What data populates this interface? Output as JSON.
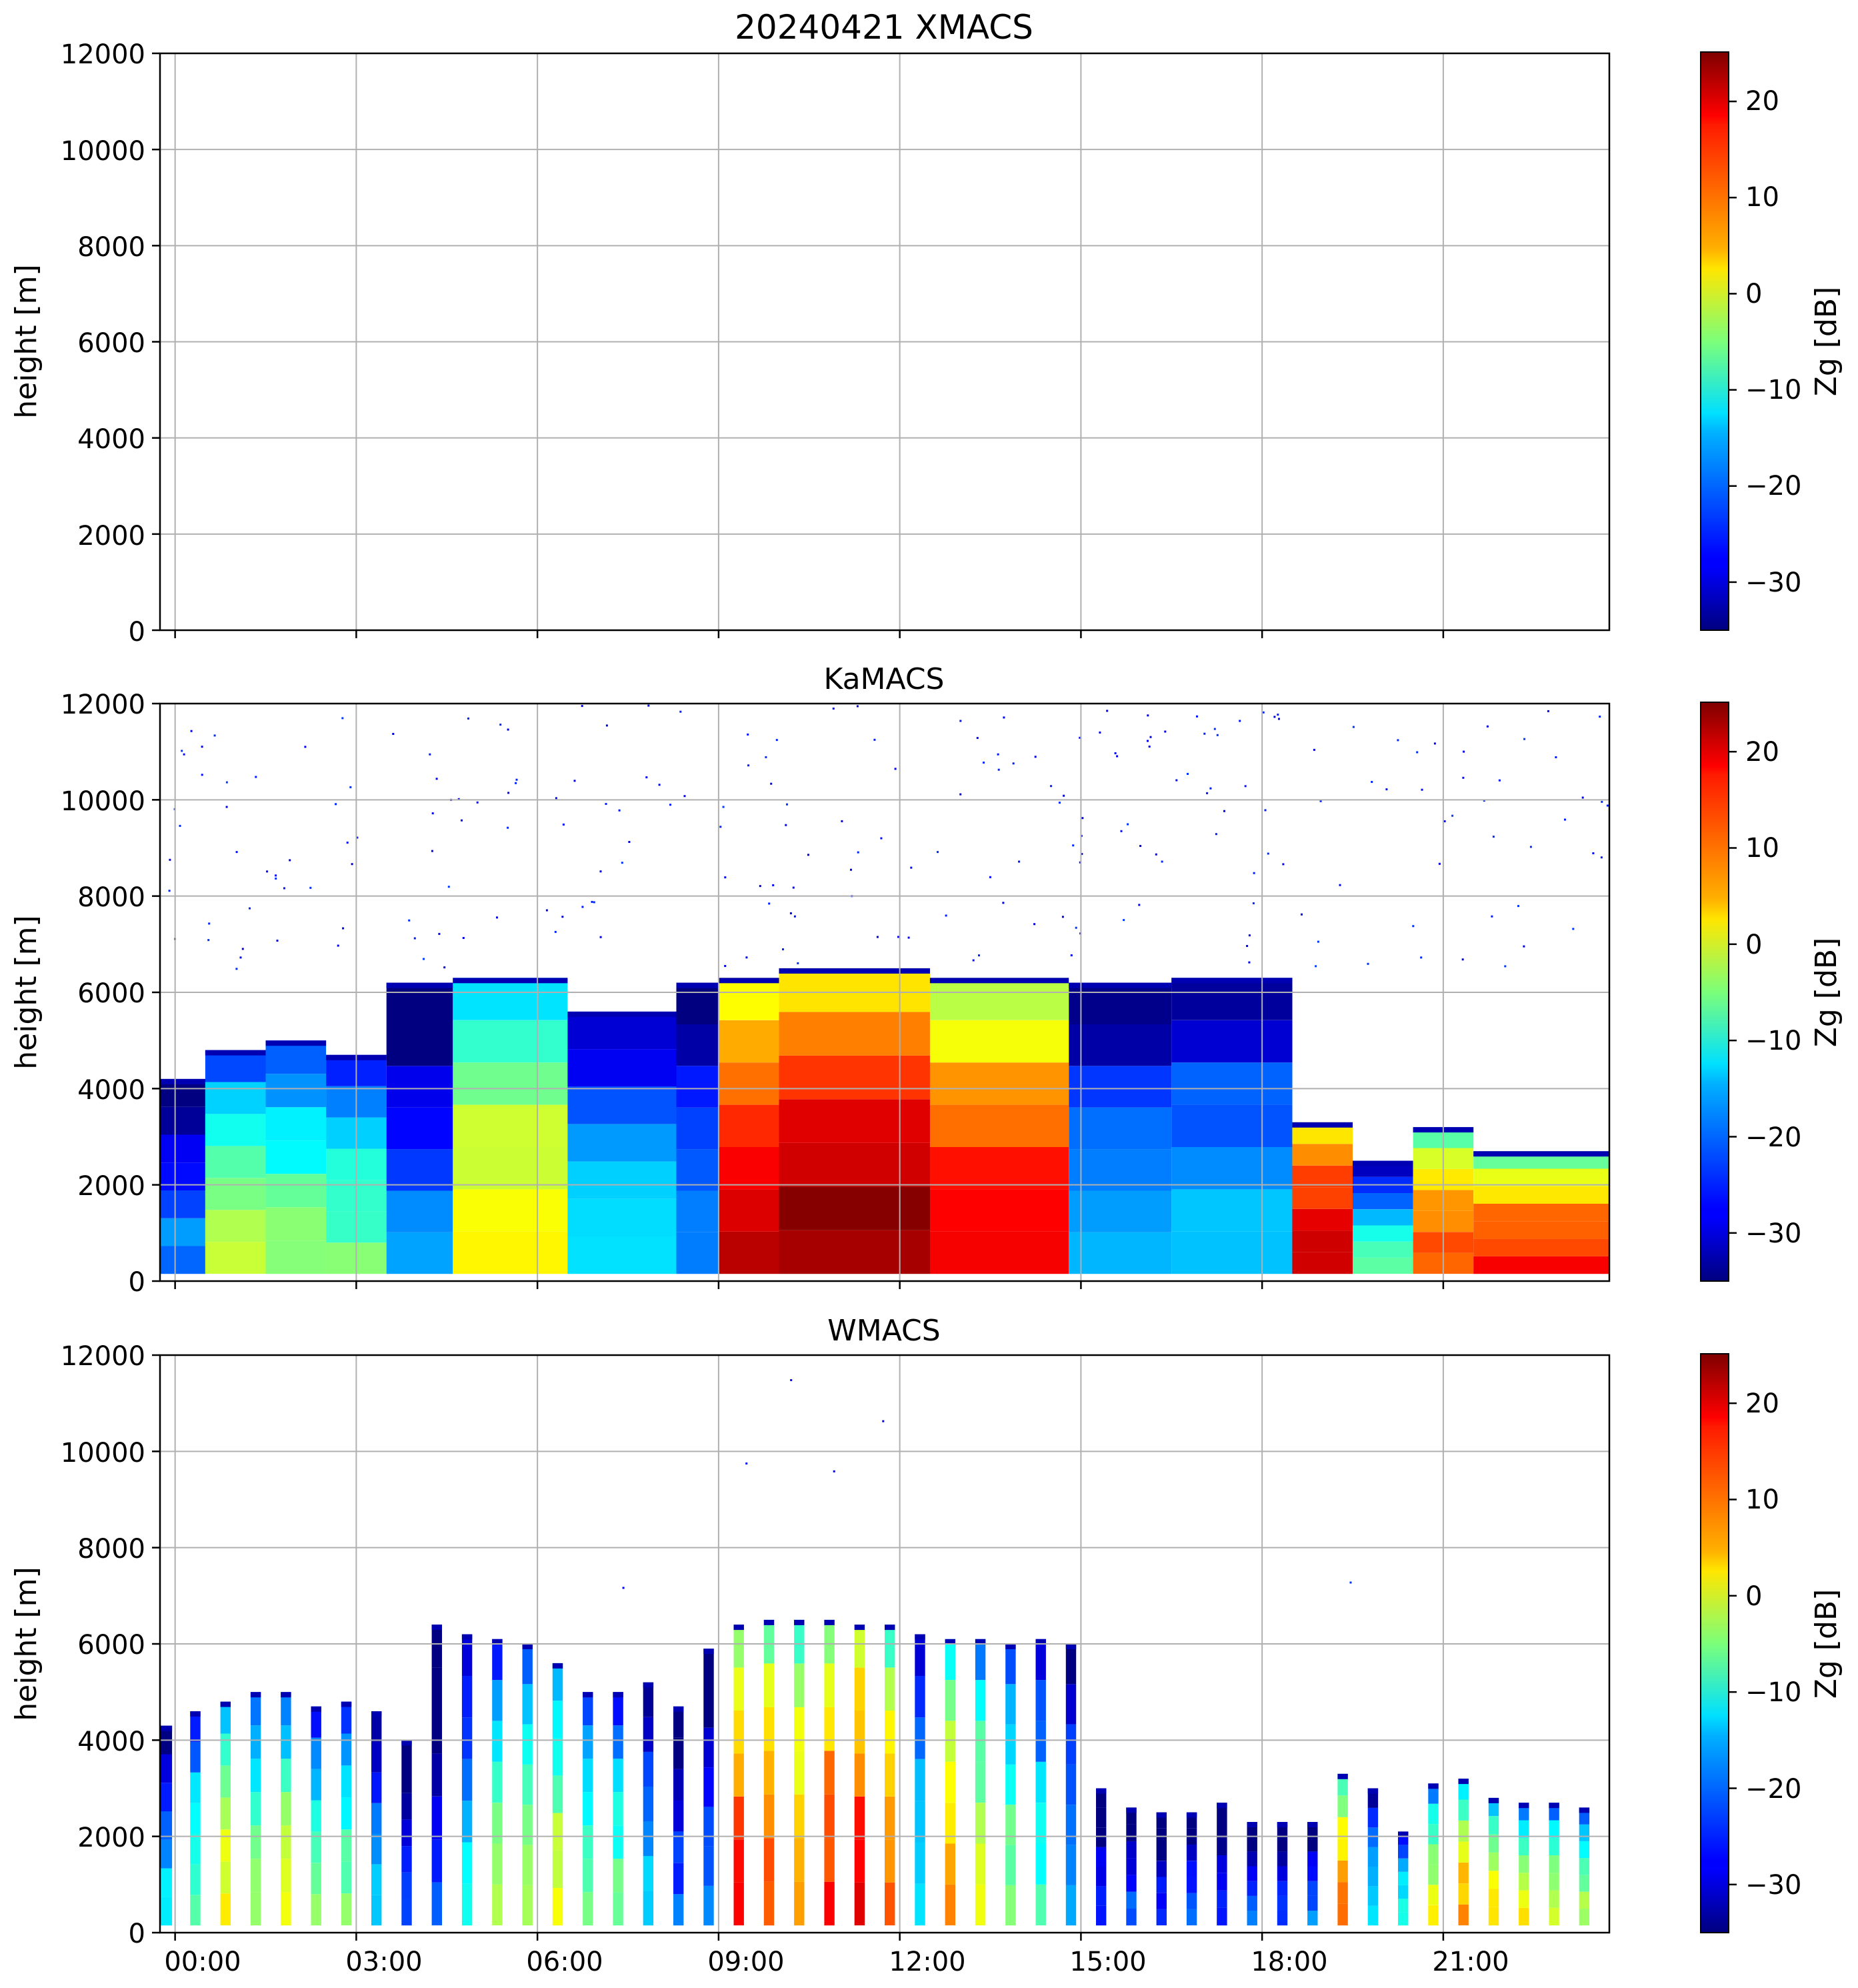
{
  "chart_data": [
    {
      "type": "heatmap",
      "title": "20240421 XMACS",
      "xlabel": "",
      "ylabel": "height [m]",
      "colorbar_label": "Zg [dB]",
      "ylim": [
        0,
        12000
      ],
      "xlim_hours": [
        -0.25,
        23.75
      ],
      "yticks": [
        0,
        2000,
        4000,
        6000,
        8000,
        10000,
        12000
      ],
      "xticks": [],
      "colorbar_ticks": [
        "20",
        "10",
        "0",
        "−10",
        "−20",
        "−30"
      ],
      "colorbar_range": [
        -35,
        25
      ],
      "grid": true,
      "columns": [],
      "scatter_density": 0
    },
    {
      "type": "heatmap",
      "title": "KaMACS",
      "xlabel": "",
      "ylabel": "height [m]",
      "colorbar_label": "Zg [dB]",
      "ylim": [
        0,
        12000
      ],
      "xlim_hours": [
        -0.25,
        23.75
      ],
      "yticks": [
        0,
        2000,
        4000,
        6000,
        8000,
        10000,
        12000
      ],
      "xticks": [],
      "colorbar_ticks": [
        "20",
        "10",
        "0",
        "−10",
        "−20",
        "−30"
      ],
      "colorbar_range": [
        -35,
        25
      ],
      "grid": true,
      "columns": [
        {
          "t0": -0.25,
          "t1": 0.5,
          "top": 4200,
          "zg": -25
        },
        {
          "t0": 0.5,
          "t1": 1.5,
          "top": 4800,
          "zg": -8
        },
        {
          "t0": 1.5,
          "t1": 2.5,
          "top": 5000,
          "zg": -10
        },
        {
          "t0": 2.5,
          "t1": 3.5,
          "top": 4700,
          "zg": -12
        },
        {
          "t0": 3.5,
          "t1": 4.6,
          "top": 6200,
          "zg": -26
        },
        {
          "t0": 4.6,
          "t1": 6.5,
          "top": 6300,
          "zg": -2
        },
        {
          "t0": 6.5,
          "t1": 8.3,
          "top": 5600,
          "zg": -18
        },
        {
          "t0": 8.3,
          "t1": 9.0,
          "top": 6200,
          "zg": -24
        },
        {
          "t0": 9.0,
          "t1": 10.0,
          "top": 6300,
          "zg": 16
        },
        {
          "t0": 10.0,
          "t1": 12.5,
          "top": 6500,
          "zg": 18
        },
        {
          "t0": 12.5,
          "t1": 14.8,
          "top": 6300,
          "zg": 12
        },
        {
          "t0": 14.8,
          "t1": 16.5,
          "top": 6200,
          "zg": -22
        },
        {
          "t0": 16.5,
          "t1": 18.5,
          "top": 6300,
          "zg": -20
        },
        {
          "t0": 18.5,
          "t1": 19.5,
          "top": 3300,
          "zg": 16
        },
        {
          "t0": 19.5,
          "t1": 20.5,
          "top": 2500,
          "zg": -15
        },
        {
          "t0": 20.5,
          "t1": 21.5,
          "top": 3200,
          "zg": 8
        },
        {
          "t0": 21.5,
          "t1": 23.75,
          "top": 2700,
          "zg": 10
        }
      ],
      "scatter_density": 230
    },
    {
      "type": "heatmap",
      "title": "WMACS",
      "xlabel": "",
      "ylabel": "height [m]",
      "colorbar_label": "Zg [dB]",
      "ylim": [
        0,
        12000
      ],
      "xlim_hours": [
        -0.25,
        23.75
      ],
      "yticks": [
        0,
        2000,
        4000,
        6000,
        8000,
        10000,
        12000
      ],
      "xticks": [
        "00:00",
        "03:00",
        "06:00",
        "09:00",
        "12:00",
        "15:00",
        "18:00",
        "21:00"
      ],
      "colorbar_ticks": [
        "20",
        "10",
        "0",
        "−10",
        "−20",
        "−30"
      ],
      "colorbar_range": [
        -35,
        25
      ],
      "grid": true,
      "columns": [
        {
          "t0": -0.25,
          "t1": -0.05,
          "top": 4300,
          "zg": -20
        },
        {
          "t0": 0.25,
          "t1": 0.42,
          "top": 4600,
          "zg": -12
        },
        {
          "t0": 0.75,
          "t1": 0.92,
          "top": 4800,
          "zg": -3
        },
        {
          "t0": 1.25,
          "t1": 1.42,
          "top": 5000,
          "zg": -8
        },
        {
          "t0": 1.75,
          "t1": 1.92,
          "top": 5000,
          "zg": -5
        },
        {
          "t0": 2.25,
          "t1": 2.42,
          "top": 4700,
          "zg": -12
        },
        {
          "t0": 2.75,
          "t1": 2.92,
          "top": 4800,
          "zg": -10
        },
        {
          "t0": 3.25,
          "t1": 3.42,
          "top": 4600,
          "zg": -20
        },
        {
          "t0": 3.75,
          "t1": 3.92,
          "top": 4000,
          "zg": -30
        },
        {
          "t0": 4.25,
          "t1": 4.42,
          "top": 6400,
          "zg": -30
        },
        {
          "t0": 4.75,
          "t1": 4.92,
          "top": 6200,
          "zg": -18
        },
        {
          "t0": 5.25,
          "t1": 5.42,
          "top": 6100,
          "zg": -10
        },
        {
          "t0": 5.75,
          "t1": 5.92,
          "top": 6000,
          "zg": -8
        },
        {
          "t0": 6.25,
          "t1": 6.42,
          "top": 5600,
          "zg": -5
        },
        {
          "t0": 6.75,
          "t1": 6.92,
          "top": 5000,
          "zg": -10
        },
        {
          "t0": 7.25,
          "t1": 7.42,
          "top": 5000,
          "zg": -12
        },
        {
          "t0": 7.75,
          "t1": 7.92,
          "top": 5200,
          "zg": -20
        },
        {
          "t0": 8.25,
          "t1": 8.42,
          "top": 4700,
          "zg": -28
        },
        {
          "t0": 8.75,
          "t1": 8.92,
          "top": 5900,
          "zg": -26
        },
        {
          "t0": 9.25,
          "t1": 9.42,
          "top": 6400,
          "zg": 10
        },
        {
          "t0": 9.75,
          "t1": 9.92,
          "top": 6500,
          "zg": 8
        },
        {
          "t0": 10.25,
          "t1": 10.42,
          "top": 6500,
          "zg": 4
        },
        {
          "t0": 10.75,
          "t1": 10.92,
          "top": 6500,
          "zg": 10
        },
        {
          "t0": 11.25,
          "t1": 11.42,
          "top": 6400,
          "zg": 12
        },
        {
          "t0": 11.75,
          "t1": 11.92,
          "top": 6400,
          "zg": 6
        },
        {
          "t0": 12.25,
          "t1": 12.42,
          "top": 6200,
          "zg": -18
        },
        {
          "t0": 12.75,
          "t1": 12.92,
          "top": 6100,
          "zg": 2
        },
        {
          "t0": 13.25,
          "t1": 13.42,
          "top": 6100,
          "zg": -5
        },
        {
          "t0": 13.75,
          "t1": 13.92,
          "top": 6000,
          "zg": -10
        },
        {
          "t0": 14.25,
          "t1": 14.42,
          "top": 6100,
          "zg": -15
        },
        {
          "t0": 14.75,
          "t1": 14.92,
          "top": 6000,
          "zg": -22
        },
        {
          "t0": 15.25,
          "t1": 15.42,
          "top": 3000,
          "zg": -30
        },
        {
          "t0": 15.75,
          "t1": 15.92,
          "top": 2600,
          "zg": -28
        },
        {
          "t0": 16.25,
          "t1": 16.42,
          "top": 2500,
          "zg": -30
        },
        {
          "t0": 16.75,
          "t1": 16.92,
          "top": 2500,
          "zg": -28
        },
        {
          "t0": 17.25,
          "t1": 17.42,
          "top": 2700,
          "zg": -30
        },
        {
          "t0": 17.75,
          "t1": 17.92,
          "top": 2300,
          "zg": -28
        },
        {
          "t0": 18.25,
          "t1": 18.42,
          "top": 2300,
          "zg": -30
        },
        {
          "t0": 18.75,
          "t1": 18.92,
          "top": 2300,
          "zg": -26
        },
        {
          "t0": 19.25,
          "t1": 19.42,
          "top": 3300,
          "zg": 6
        },
        {
          "t0": 19.75,
          "t1": 19.92,
          "top": 3000,
          "zg": -18
        },
        {
          "t0": 20.25,
          "t1": 20.42,
          "top": 2100,
          "zg": -15
        },
        {
          "t0": 20.75,
          "t1": 20.92,
          "top": 3100,
          "zg": -5
        },
        {
          "t0": 21.25,
          "t1": 21.42,
          "top": 3200,
          "zg": 2
        },
        {
          "t0": 21.75,
          "t1": 21.92,
          "top": 2800,
          "zg": -2
        },
        {
          "t0": 22.25,
          "t1": 22.42,
          "top": 2700,
          "zg": -4
        },
        {
          "t0": 22.75,
          "t1": 22.92,
          "top": 2700,
          "zg": -6
        },
        {
          "t0": 23.25,
          "t1": 23.42,
          "top": 2600,
          "zg": -8
        }
      ],
      "scatter_density": 6
    }
  ]
}
